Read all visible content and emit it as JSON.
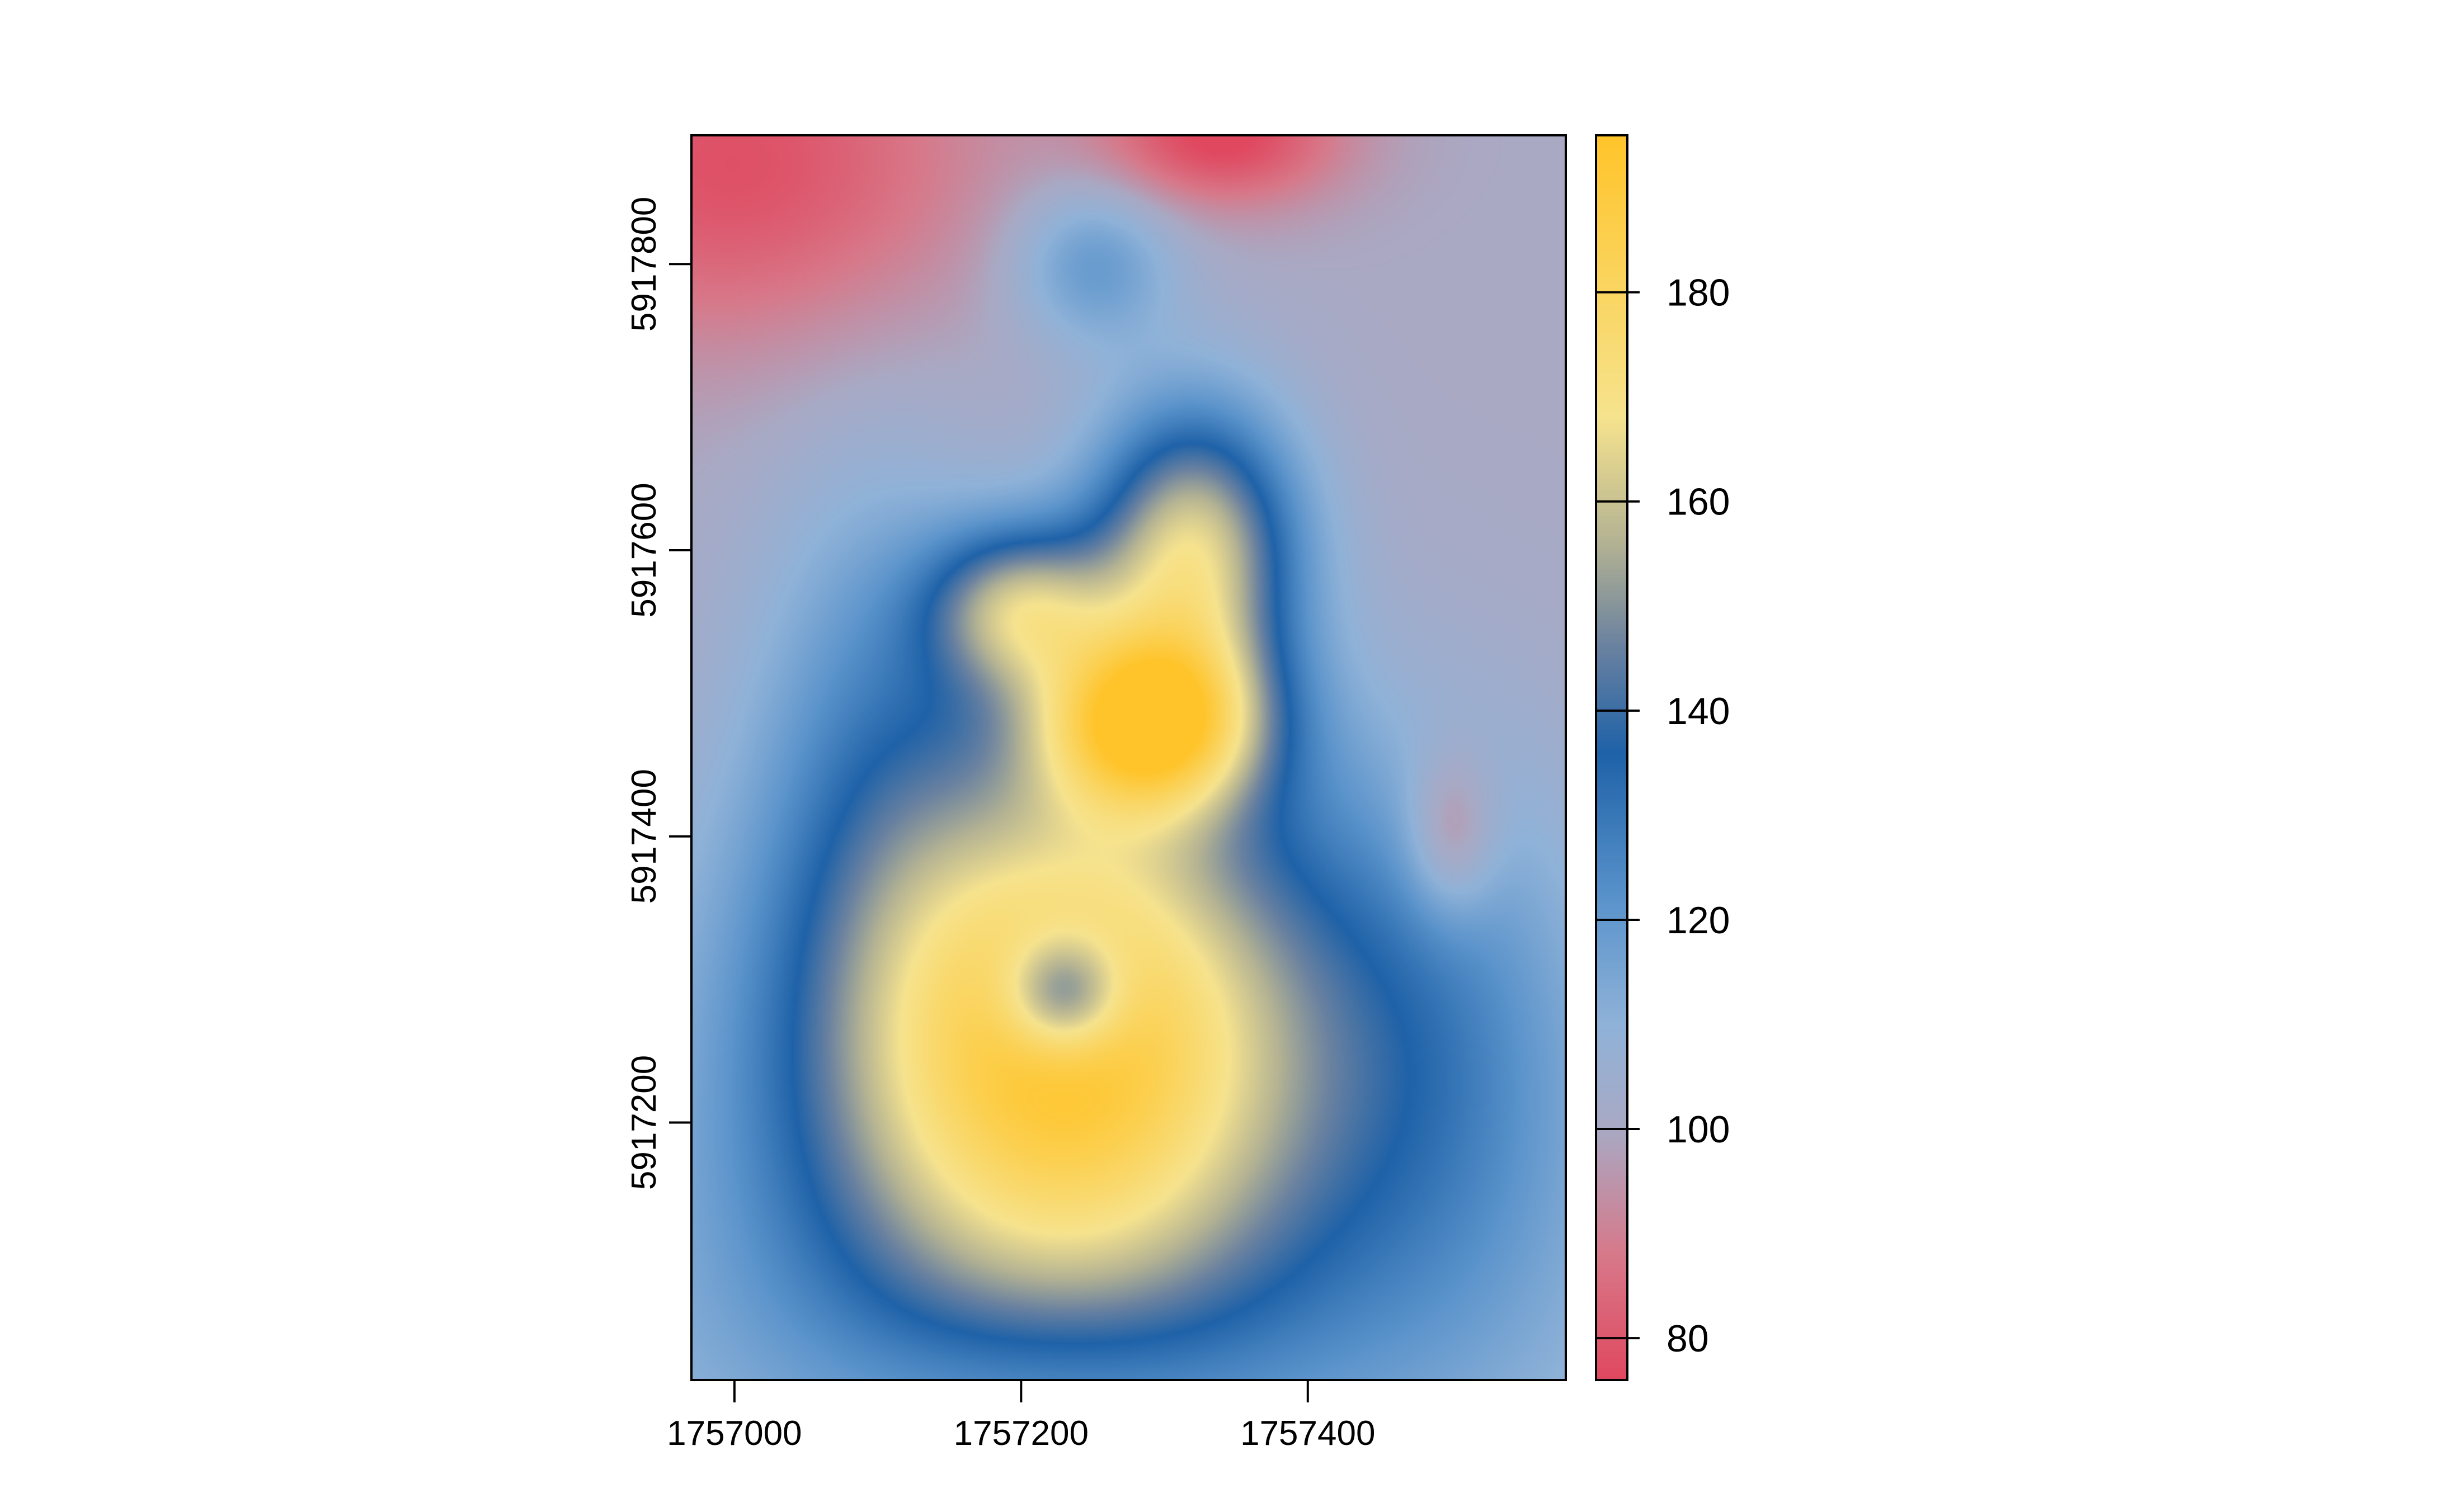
{
  "chart_data": {
    "type": "heatmap",
    "title": "",
    "xlabel": "",
    "ylabel": "",
    "x_ticks": [
      "1757000",
      "1757200",
      "1757400"
    ],
    "y_ticks": [
      "5917200",
      "5917400",
      "5917600",
      "5917800"
    ],
    "xlim": [
      1756970,
      1757580
    ],
    "ylim": [
      5917020,
      5917890
    ],
    "legend": {
      "position": "right",
      "ticks": [
        "80",
        "100",
        "120",
        "140",
        "160",
        "180"
      ],
      "range": [
        76,
        195
      ]
    },
    "colormap": [
      {
        "value": 76,
        "color": "#e0485f"
      },
      {
        "value": 88,
        "color": "#d7798a"
      },
      {
        "value": 100,
        "color": "#a9a9c4"
      },
      {
        "value": 110,
        "color": "#8fb2d8"
      },
      {
        "value": 122,
        "color": "#5a93cb"
      },
      {
        "value": 136,
        "color": "#1f62a8"
      },
      {
        "value": 146,
        "color": "#6981a0"
      },
      {
        "value": 156,
        "color": "#b3b293"
      },
      {
        "value": 168,
        "color": "#f6e38e"
      },
      {
        "value": 195,
        "color": "#ffc42a"
      }
    ],
    "surface": {
      "description_free": true,
      "base": 100,
      "features": [
        {
          "x": 1757230,
          "y": 5917260,
          "sx": 130,
          "sy": 140,
          "amp": 92
        },
        {
          "x": 1757290,
          "y": 5917480,
          "sx": 55,
          "sy": 45,
          "amp": 75
        },
        {
          "x": 1757320,
          "y": 5917600,
          "sx": 50,
          "sy": 70,
          "amp": 62
        },
        {
          "x": 1757200,
          "y": 5917560,
          "sx": 45,
          "sy": 40,
          "amp": 48
        },
        {
          "x": 1757230,
          "y": 5917290,
          "sx": 30,
          "sy": 30,
          "amp": -40
        },
        {
          "x": 1757250,
          "y": 5917800,
          "sx": 40,
          "sy": 40,
          "amp": 20
        },
        {
          "x": 1757230,
          "y": 5917050,
          "sx": 280,
          "sy": 120,
          "amp": 14
        },
        {
          "x": 1757500,
          "y": 5917250,
          "sx": 80,
          "sy": 140,
          "amp": 18
        },
        {
          "x": 1757100,
          "y": 5917500,
          "sx": 60,
          "sy": 130,
          "amp": 15
        },
        {
          "x": 1757000,
          "y": 5917870,
          "sx": 120,
          "sy": 90,
          "amp": -22
        },
        {
          "x": 1757340,
          "y": 5917890,
          "sx": 60,
          "sy": 35,
          "amp": -25
        },
        {
          "x": 1757500,
          "y": 5917400,
          "sx": 22,
          "sy": 40,
          "amp": -18
        },
        {
          "x": 1757220,
          "y": 5917020,
          "sx": 90,
          "sy": 40,
          "amp": -8
        }
      ]
    }
  }
}
